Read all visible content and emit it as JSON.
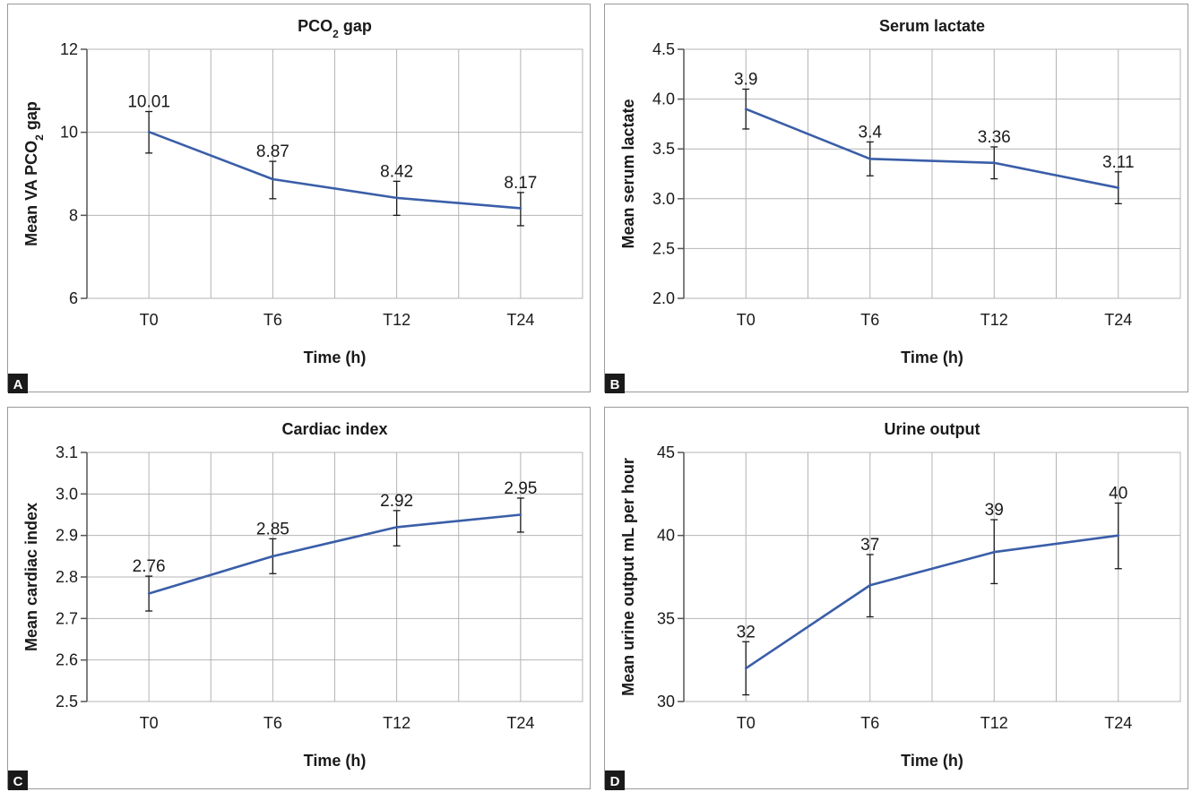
{
  "colors": {
    "line": "#3a5ea8",
    "grid": "#b4b4b4",
    "axis": "#555555",
    "error": "#1a1a1a"
  },
  "chart_data": [
    {
      "type": "line",
      "panel": "A",
      "title": "PCO",
      "title_sub": "2",
      "title_tail": " gap",
      "xlabel": "Time (h)",
      "ylabel": "Mean VA PCO",
      "ylabel_sub": "2",
      "ylabel_tail": " gap",
      "categories": [
        "T0",
        "T6",
        "T12",
        "T24"
      ],
      "values": [
        10.01,
        8.87,
        8.42,
        8.17
      ],
      "labels": [
        "10.01",
        "8.87",
        "8.42",
        "8.17"
      ],
      "error_low": [
        9.5,
        8.4,
        8.0,
        7.75
      ],
      "error_high": [
        10.5,
        9.3,
        8.82,
        8.55
      ],
      "ylim": [
        6,
        12
      ],
      "yticks": [
        "6",
        "8",
        "10",
        "12"
      ],
      "grid": true
    },
    {
      "type": "line",
      "panel": "B",
      "title": "Serum lactate",
      "xlabel": "Time (h)",
      "ylabel": "Mean serum lactate",
      "categories": [
        "T0",
        "T6",
        "T12",
        "T24"
      ],
      "values": [
        3.9,
        3.4,
        3.36,
        3.11
      ],
      "labels": [
        "3.9",
        "3.4",
        "3.36",
        "3.11"
      ],
      "error_low": [
        3.7,
        3.23,
        3.2,
        2.95
      ],
      "error_high": [
        4.1,
        3.57,
        3.52,
        3.27
      ],
      "ylim": [
        2.0,
        4.5
      ],
      "yticks": [
        "2.0",
        "2.5",
        "3.0",
        "3.5",
        "4.0",
        "4.5"
      ],
      "grid": true
    },
    {
      "type": "line",
      "panel": "C",
      "title": "Cardiac index",
      "xlabel": "Time (h)",
      "ylabel": "Mean cardiac index",
      "categories": [
        "T0",
        "T6",
        "T12",
        "T24"
      ],
      "values": [
        2.76,
        2.85,
        2.92,
        2.95
      ],
      "labels": [
        "2.76",
        "2.85",
        "2.92",
        "2.95"
      ],
      "error_low": [
        2.718,
        2.808,
        2.875,
        2.908
      ],
      "error_high": [
        2.802,
        2.892,
        2.96,
        2.99
      ],
      "ylim": [
        2.5,
        3.1
      ],
      "yticks": [
        "2.5",
        "2.6",
        "2.7",
        "2.8",
        "2.9",
        "3.0",
        "3.1"
      ],
      "grid": true
    },
    {
      "type": "line",
      "panel": "D",
      "title": "Urine output",
      "xlabel": "Time (h)",
      "ylabel": "Mean urine output mL per hour",
      "categories": [
        "T0",
        "T6",
        "T12",
        "T24"
      ],
      "values": [
        32,
        37,
        39,
        40
      ],
      "labels": [
        "32",
        "37",
        "39",
        "40"
      ],
      "error_low": [
        30.4,
        35.1,
        37.1,
        38.0
      ],
      "error_high": [
        33.6,
        38.85,
        40.95,
        41.95
      ],
      "ylim": [
        30,
        45
      ],
      "yticks": [
        "30",
        "35",
        "40",
        "45"
      ],
      "grid": true
    }
  ]
}
